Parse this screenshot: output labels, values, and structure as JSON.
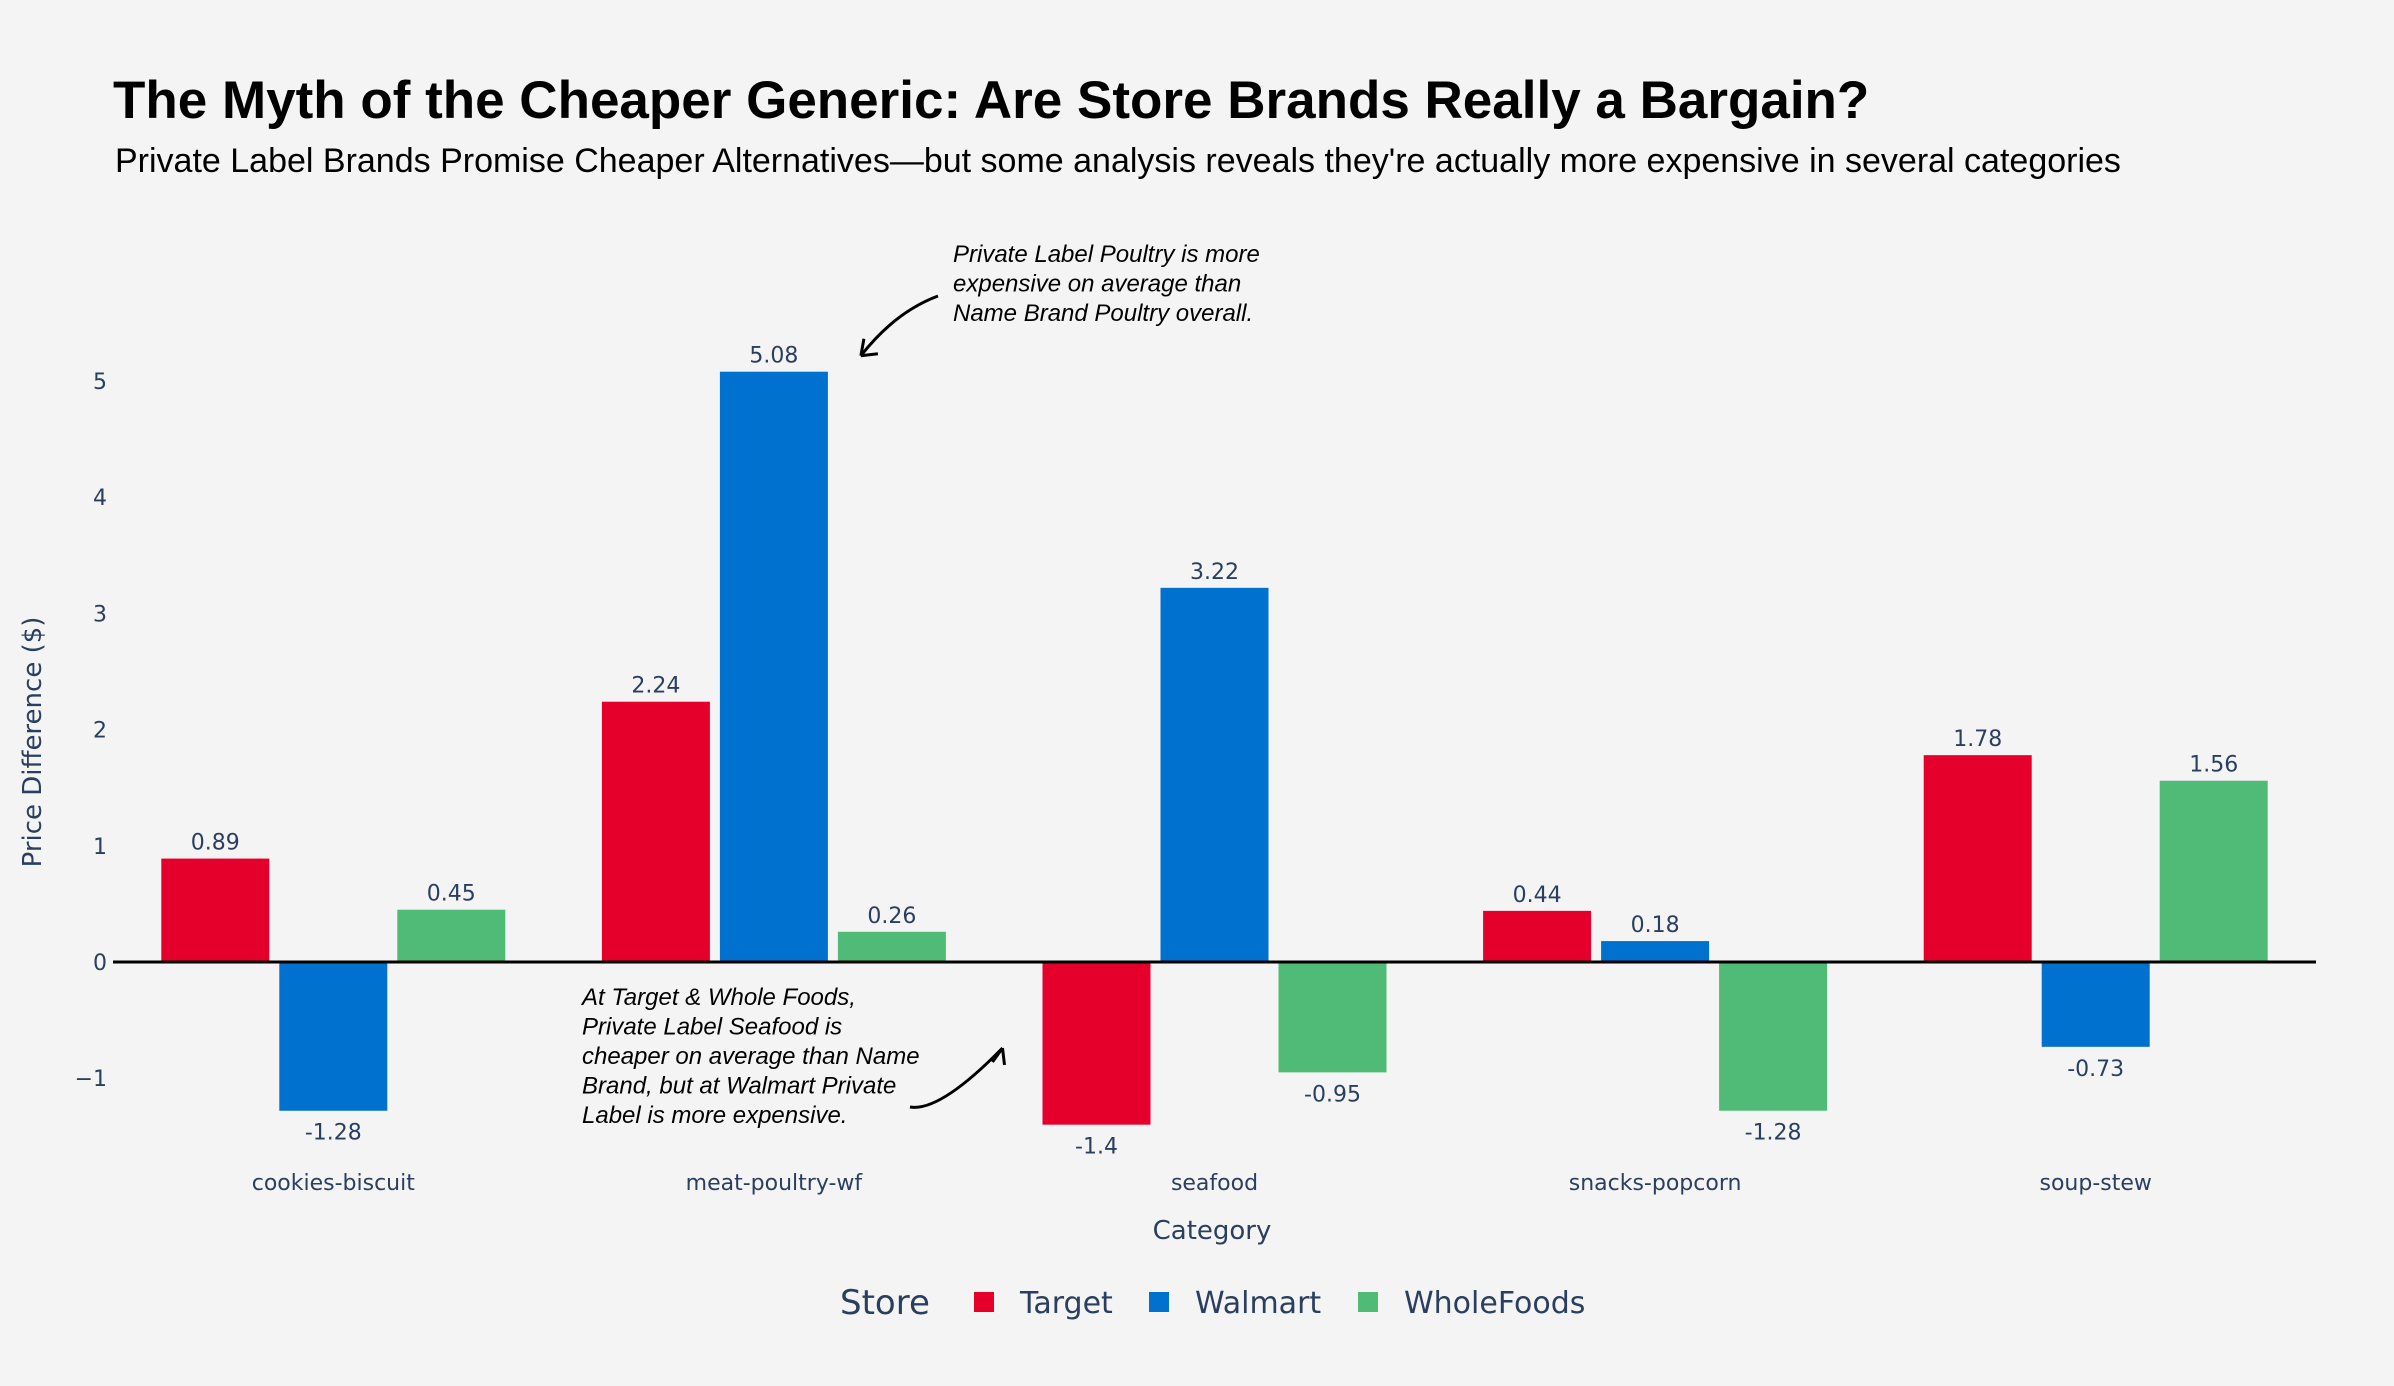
{
  "header": {
    "title": "The Myth of the Cheaper Generic: Are Store Brands Really a Bargain?",
    "subtitle": "Private Label Brands Promise Cheaper Alternatives—but some analysis reveals they're actually more expensive in several categories"
  },
  "chart_data": {
    "type": "bar",
    "title": "The Myth of the Cheaper Generic: Are Store Brands Really a Bargain?",
    "subtitle": "Private Label Brands Promise Cheaper Alternatives—but some analysis reveals they're actually more expensive in several categories",
    "xlabel": "Category",
    "ylabel": "Price Difference ($)",
    "categories": [
      "cookies-biscuit",
      "meat-poultry-wf",
      "seafood",
      "snacks-popcorn",
      "soup-stew"
    ],
    "series": [
      {
        "name": "Target",
        "color": "#e4002b",
        "values": [
          0.89,
          2.24,
          -1.4,
          0.44,
          1.78
        ],
        "labels": [
          "0.89",
          "2.24",
          "-1.4",
          "0.44",
          "1.78"
        ]
      },
      {
        "name": "Walmart",
        "color": "#0071ce",
        "values": [
          -1.28,
          5.08,
          3.22,
          0.18,
          -0.73
        ],
        "labels": [
          "-1.28",
          "5.08",
          "3.22",
          "0.18",
          "-0.73"
        ]
      },
      {
        "name": "WholeFoods",
        "color": "#4fbb77",
        "values": [
          0.45,
          0.26,
          -0.95,
          -1.28,
          1.56
        ],
        "labels": [
          "0.45",
          "0.26",
          "-0.95",
          "-1.28",
          "1.56"
        ]
      }
    ],
    "ylim": [
      -1.55,
      5.6
    ],
    "yticks": [
      -1,
      0,
      1,
      2,
      3,
      4,
      5
    ],
    "ytick_labels": [
      "−1",
      "0",
      "1",
      "2",
      "3",
      "4",
      "5"
    ],
    "grid": false,
    "legend": {
      "title": "Store",
      "placement": "bottom-center",
      "orientation": "horizontal"
    },
    "annotations": [
      {
        "lines": [
          "Private Label Poultry is more",
          "expensive on average than",
          "Name Brand Poultry overall."
        ],
        "points_to": {
          "category": "meat-poultry-wf",
          "series": "Walmart"
        }
      },
      {
        "lines": [
          "At Target & Whole Foods,",
          "Private Label Seafood is",
          "cheaper on average than Name",
          "Brand, but at Walmart Private",
          "Label is more expensive."
        ],
        "points_to": {
          "category": "seafood",
          "series": "Target"
        }
      }
    ]
  }
}
